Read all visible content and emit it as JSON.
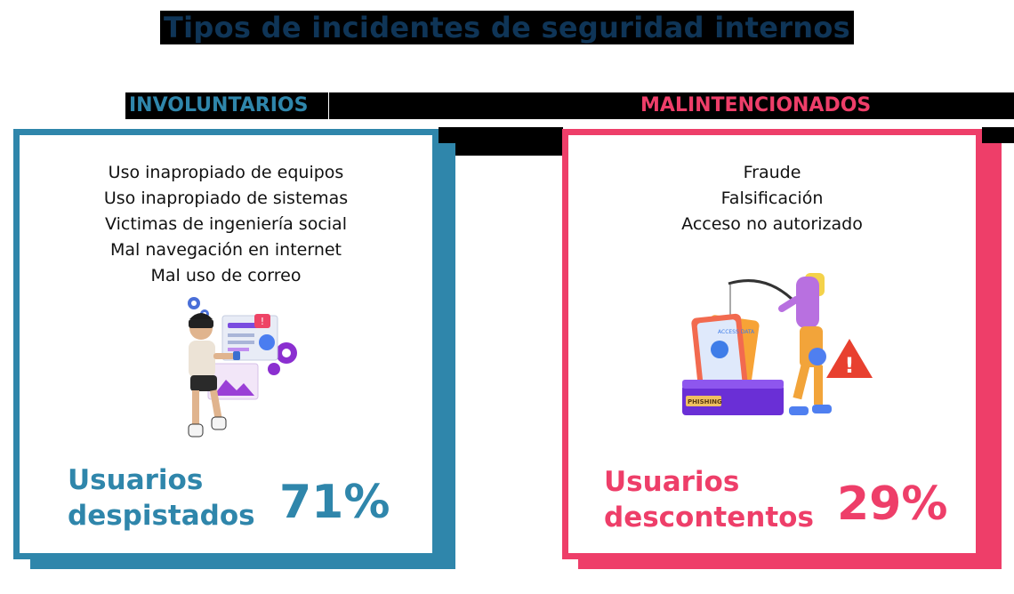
{
  "title": "Tipos de incidentes de seguridad internos",
  "colors": {
    "blue": "#2f86ab",
    "pink": "#ee3e69",
    "navy": "#123a5c"
  },
  "involuntary": {
    "heading": "INVOLUNTARIOS",
    "items": [
      "Uso inapropiado de equipos",
      "Uso inapropiado de sistemas",
      "Victimas de ingeniería social",
      "Mal navegación en internet",
      "Mal uso de correo"
    ],
    "label_line1": "Usuarios",
    "label_line2": "despistados",
    "percent": "71%",
    "illustration": "vr-user-illustration"
  },
  "malicious": {
    "heading": "MALINTENCIONADOS",
    "items": [
      "Fraude",
      "Falsificación",
      "Acceso no autorizado"
    ],
    "label_line1": "Usuarios",
    "label_line2": "descontentos",
    "percent": "29%",
    "illustration": "phishing-illustration",
    "phishing_tag": "PHISHING",
    "access_tag": "ACCESS DATA"
  }
}
